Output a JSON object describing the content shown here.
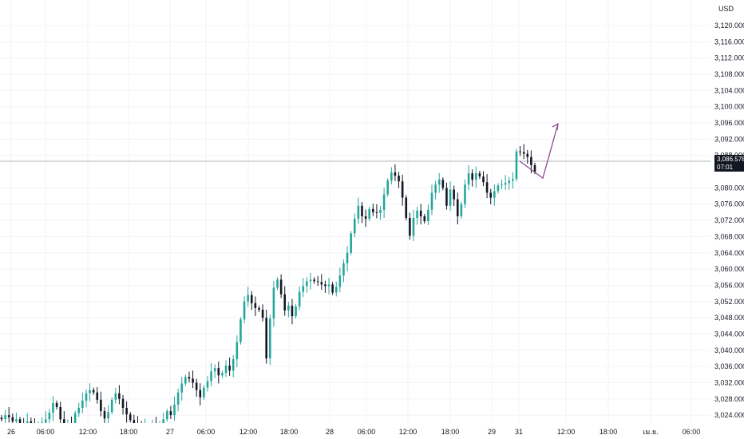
{
  "currency": "USD",
  "last_price": "3,086.578",
  "countdown": "07:01",
  "price_ticks": [
    "3,120.000",
    "3,116.000",
    "3,112.000",
    "3,108.000",
    "3,104.000",
    "3,100.000",
    "3,096.000",
    "3,092.000",
    "3,088.000",
    "3,080.000",
    "3,076.000",
    "3,072.000",
    "3,068.000",
    "3,064.000",
    "3,060.000",
    "3,056.000",
    "3,052.000",
    "3,048.000",
    "3,044.000",
    "3,040.000",
    "3,036.000",
    "3,032.000",
    "3,028.000",
    "3,024.000"
  ],
  "time_ticks": [
    "26",
    "06:00",
    "12:00",
    "18:00",
    "27",
    "06:00",
    "12:00",
    "18:00",
    "28",
    "06:00",
    "12:00",
    "18:00",
    "29",
    "31",
    "12:00",
    "18:00",
    "เม.ย.",
    "06:00"
  ],
  "colors": {
    "up": "#26a69a",
    "down": "#131722",
    "grid": "#f0f3fa",
    "projection": "#8e4b8e",
    "price_line": "#b2b5be"
  },
  "chart_data": {
    "type": "candlestick",
    "y_unit": "USD",
    "price_axis_tick_values": [
      3120,
      3116,
      3112,
      3108,
      3104,
      3100,
      3096,
      3092,
      3088,
      3080,
      3076,
      3072,
      3068,
      3064,
      3060,
      3056,
      3052,
      3048,
      3044,
      3040,
      3036,
      3032,
      3028,
      3024
    ],
    "time_axis_ticks": [
      "26",
      "06:00",
      "12:00",
      "18:00",
      "27",
      "06:00",
      "12:00",
      "18:00",
      "28",
      "06:00",
      "12:00",
      "18:00",
      "29",
      "31",
      "12:00",
      "18:00",
      "เม.ย.",
      "06:00"
    ],
    "ylim": [
      3021.3,
      3123.7
    ],
    "current_price": 3086.578,
    "grid": true,
    "closes_approx": [
      3023.0,
      3024.0,
      3023.5,
      3022.5,
      3023.0,
      3022.0,
      3021.8,
      3022.5,
      3021.6,
      3021.4,
      3021.8,
      3022.2,
      3023.0,
      3024.6,
      3027.0,
      3026.0,
      3023.0,
      3021.8,
      3022.0,
      3021.6,
      3024.5,
      3025.8,
      3027.6,
      3029.4,
      3030.2,
      3029.6,
      3027.8,
      3025.0,
      3023.2,
      3024.8,
      3027.8,
      3029.4,
      3028.0,
      3025.8,
      3024.2,
      3022.8,
      3021.8,
      3021.6,
      3021.4,
      3021.5,
      3021.4,
      3021.6,
      3021.2,
      3021.6,
      3023.0,
      3025.0,
      3024.0,
      3026.6,
      3029.6,
      3031.8,
      3033.4,
      3033.0,
      3032.0,
      3030.2,
      3028.4,
      3030.8,
      3032.4,
      3034.8,
      3035.6,
      3033.8,
      3034.4,
      3036.2,
      3035.0,
      3037.8,
      3042.0,
      3047.6,
      3052.0,
      3053.6,
      3051.6,
      3050.4,
      3050.0,
      3048.0,
      3038.0,
      3047.8,
      3055.4,
      3057.4,
      3053.8,
      3049.8,
      3051.0,
      3048.4,
      3050.8,
      3054.4,
      3055.8,
      3057.0,
      3057.4,
      3057.0,
      3056.8,
      3056.2,
      3055.8,
      3056.2,
      3054.2,
      3055.6,
      3058.4,
      3061.4,
      3064.0,
      3068.8,
      3072.4,
      3075.6,
      3073.0,
      3072.4,
      3074.8,
      3074.0,
      3073.8,
      3074.6,
      3078.4,
      3081.8,
      3083.8,
      3083.0,
      3081.6,
      3077.6,
      3072.6,
      3068.2,
      3072.6,
      3074.4,
      3073.0,
      3071.8,
      3074.6,
      3078.8,
      3080.8,
      3082.0,
      3080.0,
      3075.6,
      3079.6,
      3077.2,
      3073.0,
      3076.0,
      3080.8,
      3083.6,
      3082.0,
      3083.6,
      3082.8,
      3081.4,
      3078.8,
      3077.6,
      3079.2,
      3080.6,
      3080.8,
      3081.2,
      3081.8,
      3082.2,
      3089.0,
      3088.8,
      3088.4,
      3087.6,
      3085.6,
      3084.0
    ],
    "projection_path": [
      {
        "time": "31 ~08:00",
        "price": 3086.6
      },
      {
        "time": "31 ~10:00",
        "price": 3082.4
      },
      {
        "time": "31 ~11:30",
        "price": 3095.8
      }
    ]
  }
}
